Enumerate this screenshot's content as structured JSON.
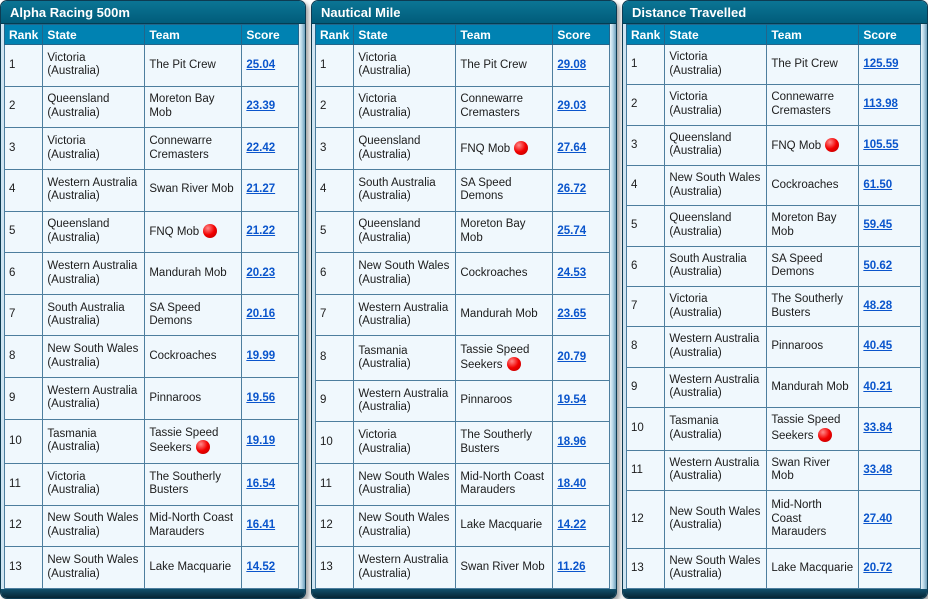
{
  "colors": {
    "title_top": "#0b7595",
    "title_bottom": "#015c7a",
    "header_bg": "#0082b2",
    "grid_border": "#4d7e9e",
    "row_bg": "#f0f8fd",
    "score_link": "#0a55cc",
    "marker_red": "#f20000",
    "edge_light": "#e8f4fa",
    "edge_dark": "#6f9fbc"
  },
  "columns": {
    "rank": "Rank",
    "state": "State",
    "team": "Team",
    "score": "Score"
  },
  "tables": [
    {
      "title": "Alpha Racing 500m",
      "rows": [
        {
          "rank": "1",
          "state": "Victoria (Australia)",
          "team": "The Pit Crew",
          "score": "25.04",
          "marker": false
        },
        {
          "rank": "2",
          "state": "Queensland (Australia)",
          "team": "Moreton Bay Mob",
          "score": "23.39",
          "marker": false
        },
        {
          "rank": "3",
          "state": "Victoria (Australia)",
          "team": "Connewarre Cremasters",
          "score": "22.42",
          "marker": false
        },
        {
          "rank": "4",
          "state": "Western Australia (Australia)",
          "team": "Swan River Mob",
          "score": "21.27",
          "marker": false
        },
        {
          "rank": "5",
          "state": "Queensland (Australia)",
          "team": "FNQ Mob",
          "score": "21.22",
          "marker": true
        },
        {
          "rank": "6",
          "state": "Western Australia (Australia)",
          "team": "Mandurah Mob",
          "score": "20.23",
          "marker": false
        },
        {
          "rank": "7",
          "state": "South Australia (Australia)",
          "team": "SA Speed Demons",
          "score": "20.16",
          "marker": false
        },
        {
          "rank": "8",
          "state": "New South Wales (Australia)",
          "team": "Cockroaches",
          "score": "19.99",
          "marker": false
        },
        {
          "rank": "9",
          "state": "Western Australia (Australia)",
          "team": "Pinnaroos",
          "score": "19.56",
          "marker": false
        },
        {
          "rank": "10",
          "state": "Tasmania (Australia)",
          "team": "Tassie Speed Seekers",
          "score": "19.19",
          "marker": true
        },
        {
          "rank": "11",
          "state": "Victoria (Australia)",
          "team": "The Southerly Busters",
          "score": "16.54",
          "marker": false
        },
        {
          "rank": "12",
          "state": "New South Wales (Australia)",
          "team": "Mid-North Coast Marauders",
          "score": "16.41",
          "marker": false
        },
        {
          "rank": "13",
          "state": "New South Wales (Australia)",
          "team": "Lake Macquarie",
          "score": "14.52",
          "marker": false
        }
      ]
    },
    {
      "title": "Nautical Mile",
      "rows": [
        {
          "rank": "1",
          "state": "Victoria (Australia)",
          "team": "The Pit Crew",
          "score": "29.08",
          "marker": false
        },
        {
          "rank": "2",
          "state": "Victoria (Australia)",
          "team": "Connewarre Cremasters",
          "score": "29.03",
          "marker": false
        },
        {
          "rank": "3",
          "state": "Queensland (Australia)",
          "team": "FNQ Mob",
          "score": "27.64",
          "marker": true
        },
        {
          "rank": "4",
          "state": "South Australia (Australia)",
          "team": "SA Speed Demons",
          "score": "26.72",
          "marker": false
        },
        {
          "rank": "5",
          "state": "Queensland (Australia)",
          "team": "Moreton Bay Mob",
          "score": "25.74",
          "marker": false
        },
        {
          "rank": "6",
          "state": "New South Wales (Australia)",
          "team": "Cockroaches",
          "score": "24.53",
          "marker": false
        },
        {
          "rank": "7",
          "state": "Western Australia (Australia)",
          "team": "Mandurah Mob",
          "score": "23.65",
          "marker": false
        },
        {
          "rank": "8",
          "state": "Tasmania (Australia)",
          "team": "Tassie Speed Seekers",
          "score": "20.79",
          "marker": true
        },
        {
          "rank": "9",
          "state": "Western Australia (Australia)",
          "team": "Pinnaroos",
          "score": "19.54",
          "marker": false
        },
        {
          "rank": "10",
          "state": "Victoria (Australia)",
          "team": "The Southerly Busters",
          "score": "18.96",
          "marker": false
        },
        {
          "rank": "11",
          "state": "New South Wales (Australia)",
          "team": "Mid-North Coast Marauders",
          "score": "18.40",
          "marker": false
        },
        {
          "rank": "12",
          "state": "New South Wales (Australia)",
          "team": "Lake Macquarie",
          "score": "14.22",
          "marker": false
        },
        {
          "rank": "13",
          "state": "Western Australia (Australia)",
          "team": "Swan River Mob",
          "score": "11.26",
          "marker": false
        }
      ]
    },
    {
      "title": "Distance Travelled",
      "rows": [
        {
          "rank": "1",
          "state": "Victoria (Australia)",
          "team": "The Pit Crew",
          "score": "125.59",
          "marker": false
        },
        {
          "rank": "2",
          "state": "Victoria (Australia)",
          "team": "Connewarre Cremasters",
          "score": "113.98",
          "marker": false
        },
        {
          "rank": "3",
          "state": "Queensland (Australia)",
          "team": "FNQ Mob",
          "score": "105.55",
          "marker": true
        },
        {
          "rank": "4",
          "state": "New South Wales (Australia)",
          "team": "Cockroaches",
          "score": "61.50",
          "marker": false
        },
        {
          "rank": "5",
          "state": "Queensland (Australia)",
          "team": "Moreton Bay Mob",
          "score": "59.45",
          "marker": false
        },
        {
          "rank": "6",
          "state": "South Australia (Australia)",
          "team": "SA Speed Demons",
          "score": "50.62",
          "marker": false
        },
        {
          "rank": "7",
          "state": "Victoria (Australia)",
          "team": "The Southerly Busters",
          "score": "48.28",
          "marker": false
        },
        {
          "rank": "8",
          "state": "Western Australia (Australia)",
          "team": "Pinnaroos",
          "score": "40.45",
          "marker": false
        },
        {
          "rank": "9",
          "state": "Western Australia (Australia)",
          "team": "Mandurah Mob",
          "score": "40.21",
          "marker": false
        },
        {
          "rank": "10",
          "state": "Tasmania (Australia)",
          "team": "Tassie Speed Seekers",
          "score": "33.84",
          "marker": true
        },
        {
          "rank": "11",
          "state": "Western Australia (Australia)",
          "team": "Swan River Mob",
          "score": "33.48",
          "marker": false
        },
        {
          "rank": "12",
          "state": "New South Wales (Australia)",
          "team": "Mid-North Coast Marauders",
          "score": "27.40",
          "marker": false
        },
        {
          "rank": "13",
          "state": "New South Wales (Australia)",
          "team": "Lake Macquarie",
          "score": "20.72",
          "marker": false
        }
      ]
    }
  ]
}
